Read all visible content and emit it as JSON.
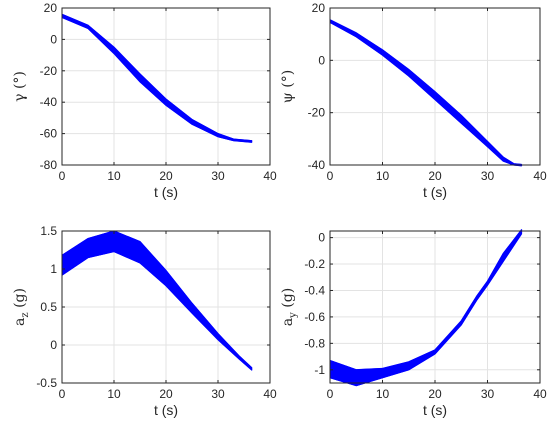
{
  "chart_data": [
    {
      "type": "line",
      "xlabel": "t (s)",
      "ylabel": "γ (°)",
      "xlim": [
        0,
        40
      ],
      "ylim": [
        -80,
        20
      ],
      "xticks": [
        0,
        10,
        20,
        30,
        40
      ],
      "yticks": [
        -80,
        -60,
        -40,
        -20,
        0,
        20
      ],
      "grid": true,
      "color": "#0000ff",
      "series": [
        {
          "values_lower": [
            [
              0,
              14
            ],
            [
              5,
              7
            ],
            [
              10,
              -9
            ],
            [
              15,
              -27
            ],
            [
              20,
              -42
            ],
            [
              25,
              -54
            ],
            [
              30,
              -62
            ],
            [
              33,
              -64.5
            ],
            [
              36.5,
              -65.5
            ]
          ],
          "values_upper": [
            [
              0,
              16
            ],
            [
              5,
              9
            ],
            [
              10,
              -5
            ],
            [
              15,
              -22
            ],
            [
              20,
              -38
            ],
            [
              25,
              -51
            ],
            [
              30,
              -60
            ],
            [
              33,
              -63.5
            ],
            [
              36.5,
              -64.5
            ]
          ]
        }
      ]
    },
    {
      "type": "line",
      "xlabel": "t (s)",
      "ylabel": "ψ (°)",
      "xlim": [
        0,
        40
      ],
      "ylim": [
        -40,
        20
      ],
      "xticks": [
        0,
        10,
        20,
        30,
        40
      ],
      "yticks": [
        -40,
        -20,
        0,
        20
      ],
      "grid": true,
      "color": "#0000ff",
      "series": [
        {
          "values_lower": [
            [
              0,
              14.5
            ],
            [
              5,
              9
            ],
            [
              10,
              2
            ],
            [
              15,
              -6
            ],
            [
              20,
              -15
            ],
            [
              25,
              -24
            ],
            [
              30,
              -33
            ],
            [
              33,
              -38.5
            ],
            [
              35,
              -40
            ],
            [
              36.5,
              -40.3
            ]
          ],
          "values_upper": [
            [
              0,
              15.5
            ],
            [
              5,
              10.5
            ],
            [
              10,
              4
            ],
            [
              15,
              -3.5
            ],
            [
              20,
              -12
            ],
            [
              25,
              -21
            ],
            [
              30,
              -31
            ],
            [
              33,
              -37
            ],
            [
              35,
              -39.5
            ],
            [
              36.5,
              -39.8
            ]
          ]
        }
      ]
    },
    {
      "type": "line",
      "xlabel": "t (s)",
      "ylabel": "a_z (g)",
      "xlim": [
        0,
        40
      ],
      "ylim": [
        -0.5,
        1.5
      ],
      "xticks": [
        0,
        10,
        20,
        30,
        40
      ],
      "yticks": [
        -0.5,
        0,
        0.5,
        1,
        1.5
      ],
      "ytick_labels": [
        "-0.5",
        "0",
        "0.5",
        "1",
        "1.5"
      ],
      "grid": true,
      "color": "#0000ff",
      "series": [
        {
          "values_lower": [
            [
              0,
              0.92
            ],
            [
              5,
              1.15
            ],
            [
              10,
              1.23
            ],
            [
              15,
              1.08
            ],
            [
              20,
              0.78
            ],
            [
              25,
              0.42
            ],
            [
              30,
              0.07
            ],
            [
              34,
              -0.18
            ],
            [
              36.5,
              -0.33
            ]
          ],
          "values_upper": [
            [
              0,
              1.18
            ],
            [
              5,
              1.4
            ],
            [
              10,
              1.5
            ],
            [
              15,
              1.36
            ],
            [
              20,
              0.98
            ],
            [
              25,
              0.55
            ],
            [
              30,
              0.15
            ],
            [
              34,
              -0.14
            ],
            [
              36.5,
              -0.3
            ]
          ]
        }
      ]
    },
    {
      "type": "line",
      "xlabel": "t (s)",
      "ylabel": "a_y (g)",
      "xlim": [
        0,
        40
      ],
      "ylim": [
        -1.1,
        0.05
      ],
      "xticks": [
        0,
        10,
        20,
        30,
        40
      ],
      "yticks": [
        -1,
        -0.8,
        -0.6,
        -0.4,
        -0.2,
        0
      ],
      "ytick_labels": [
        "-1",
        "-0.8",
        "-0.6",
        "-0.4",
        "-0.2",
        "0"
      ],
      "grid": true,
      "color": "#0000ff",
      "series": [
        {
          "values_lower": [
            [
              0,
              -1.06
            ],
            [
              5,
              -1.12
            ],
            [
              10,
              -1.06
            ],
            [
              15,
              -1.0
            ],
            [
              20,
              -0.88
            ],
            [
              25,
              -0.66
            ],
            [
              28,
              -0.47
            ],
            [
              30,
              -0.36
            ],
            [
              33,
              -0.18
            ],
            [
              36.5,
              0.03
            ]
          ],
          "values_upper": [
            [
              0,
              -0.93
            ],
            [
              5,
              -1.0
            ],
            [
              10,
              -0.99
            ],
            [
              15,
              -0.94
            ],
            [
              20,
              -0.85
            ],
            [
              25,
              -0.63
            ],
            [
              28,
              -0.44
            ],
            [
              30,
              -0.33
            ],
            [
              33,
              -0.12
            ],
            [
              36.5,
              0.06
            ]
          ]
        }
      ]
    }
  ]
}
